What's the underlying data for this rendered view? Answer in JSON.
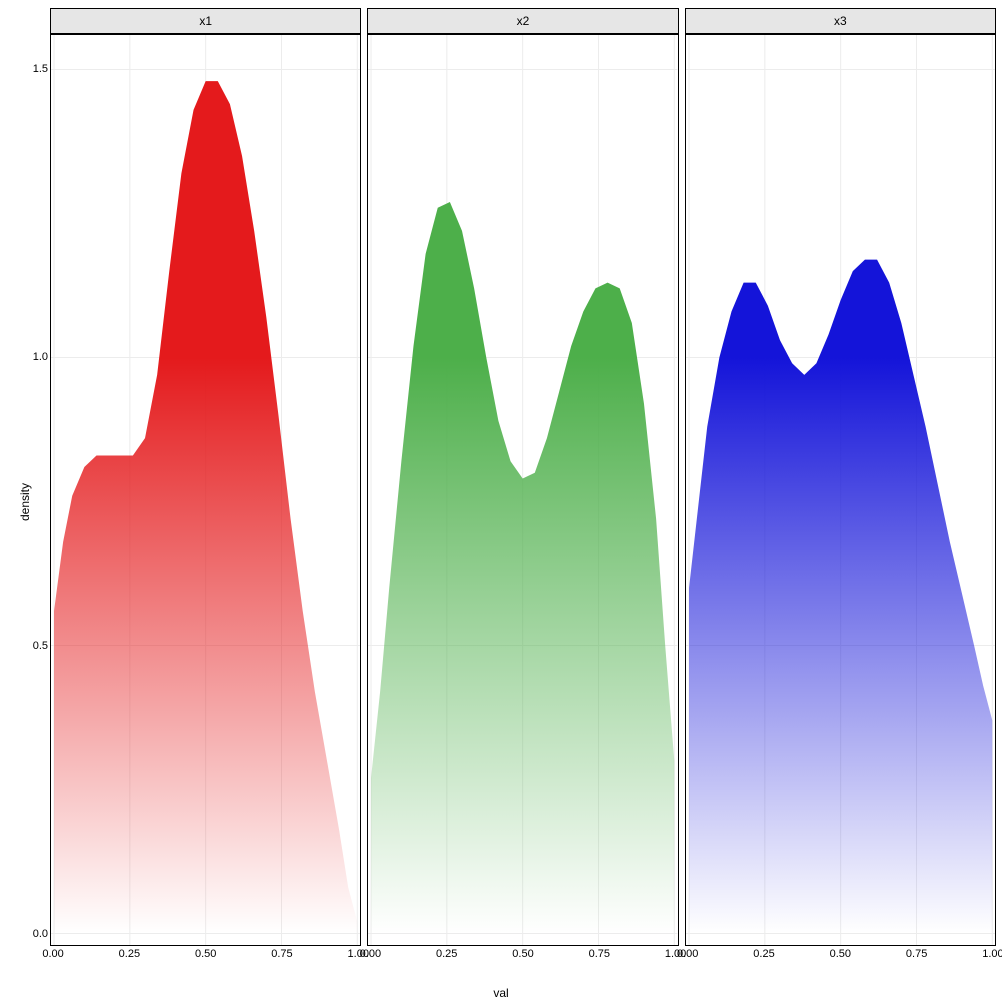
{
  "chart": {
    "type": "faceted-density",
    "background_color": "#ffffff",
    "outer_background": "#000000",
    "panel_border_color": "#000000",
    "panel_border_width": 1,
    "strip_background": "#e6e6e6",
    "strip_text_color": "#000000",
    "grid": {
      "major_color": "#ececec",
      "major_width": 1,
      "minor_color": "#f5f5f5"
    },
    "axis": {
      "x_title": "val",
      "y_title": "density",
      "title_fontsize": 12,
      "tick_fontsize": 11,
      "tick_color": "#000000",
      "x_ticks": [
        0.0,
        0.25,
        0.5,
        0.75,
        1.0
      ],
      "x_tick_labels": [
        "0.00",
        "0.25",
        "0.50",
        "0.75",
        "1.00"
      ],
      "y_ticks": [
        0.0,
        0.5,
        1.0,
        1.5
      ],
      "y_tick_labels": [
        "0.0",
        "0.5",
        "1.0",
        "1.5"
      ],
      "xlim": [
        -0.01,
        1.01
      ],
      "ylim": [
        -0.02,
        1.56
      ]
    },
    "gradient": {
      "fade_to": "#ffffff",
      "fade_start_density": 1.0,
      "fade_end_density": 0.0
    },
    "facets": [
      {
        "label": "x1",
        "fill_color": "#e41a1c",
        "density": {
          "x": [
            0.0,
            0.03,
            0.06,
            0.1,
            0.14,
            0.18,
            0.22,
            0.26,
            0.3,
            0.34,
            0.38,
            0.42,
            0.46,
            0.5,
            0.54,
            0.58,
            0.62,
            0.66,
            0.7,
            0.74,
            0.78,
            0.82,
            0.86,
            0.9,
            0.94,
            0.97,
            1.0
          ],
          "y": [
            0.56,
            0.68,
            0.76,
            0.81,
            0.83,
            0.83,
            0.83,
            0.83,
            0.86,
            0.97,
            1.15,
            1.32,
            1.43,
            1.48,
            1.48,
            1.44,
            1.35,
            1.22,
            1.07,
            0.9,
            0.72,
            0.56,
            0.42,
            0.3,
            0.18,
            0.08,
            0.02
          ]
        }
      },
      {
        "label": "x2",
        "fill_color": "#4daf4a",
        "density": {
          "x": [
            0.0,
            0.03,
            0.06,
            0.1,
            0.14,
            0.18,
            0.22,
            0.26,
            0.3,
            0.34,
            0.38,
            0.42,
            0.46,
            0.5,
            0.54,
            0.58,
            0.62,
            0.66,
            0.7,
            0.74,
            0.78,
            0.82,
            0.86,
            0.9,
            0.94,
            0.97,
            1.0
          ],
          "y": [
            0.27,
            0.42,
            0.6,
            0.82,
            1.02,
            1.18,
            1.26,
            1.27,
            1.22,
            1.12,
            1.0,
            0.89,
            0.82,
            0.79,
            0.8,
            0.86,
            0.94,
            1.02,
            1.08,
            1.12,
            1.13,
            1.12,
            1.06,
            0.92,
            0.72,
            0.5,
            0.3
          ]
        }
      },
      {
        "label": "x3",
        "fill_color": "#1414d9",
        "density": {
          "x": [
            0.0,
            0.03,
            0.06,
            0.1,
            0.14,
            0.18,
            0.22,
            0.26,
            0.3,
            0.34,
            0.38,
            0.42,
            0.46,
            0.5,
            0.54,
            0.58,
            0.62,
            0.66,
            0.7,
            0.74,
            0.78,
            0.82,
            0.86,
            0.9,
            0.94,
            0.97,
            1.0
          ],
          "y": [
            0.6,
            0.74,
            0.88,
            1.0,
            1.08,
            1.13,
            1.13,
            1.09,
            1.03,
            0.99,
            0.97,
            0.99,
            1.04,
            1.1,
            1.15,
            1.17,
            1.17,
            1.13,
            1.06,
            0.97,
            0.88,
            0.78,
            0.68,
            0.59,
            0.5,
            0.43,
            0.37
          ]
        }
      }
    ]
  }
}
